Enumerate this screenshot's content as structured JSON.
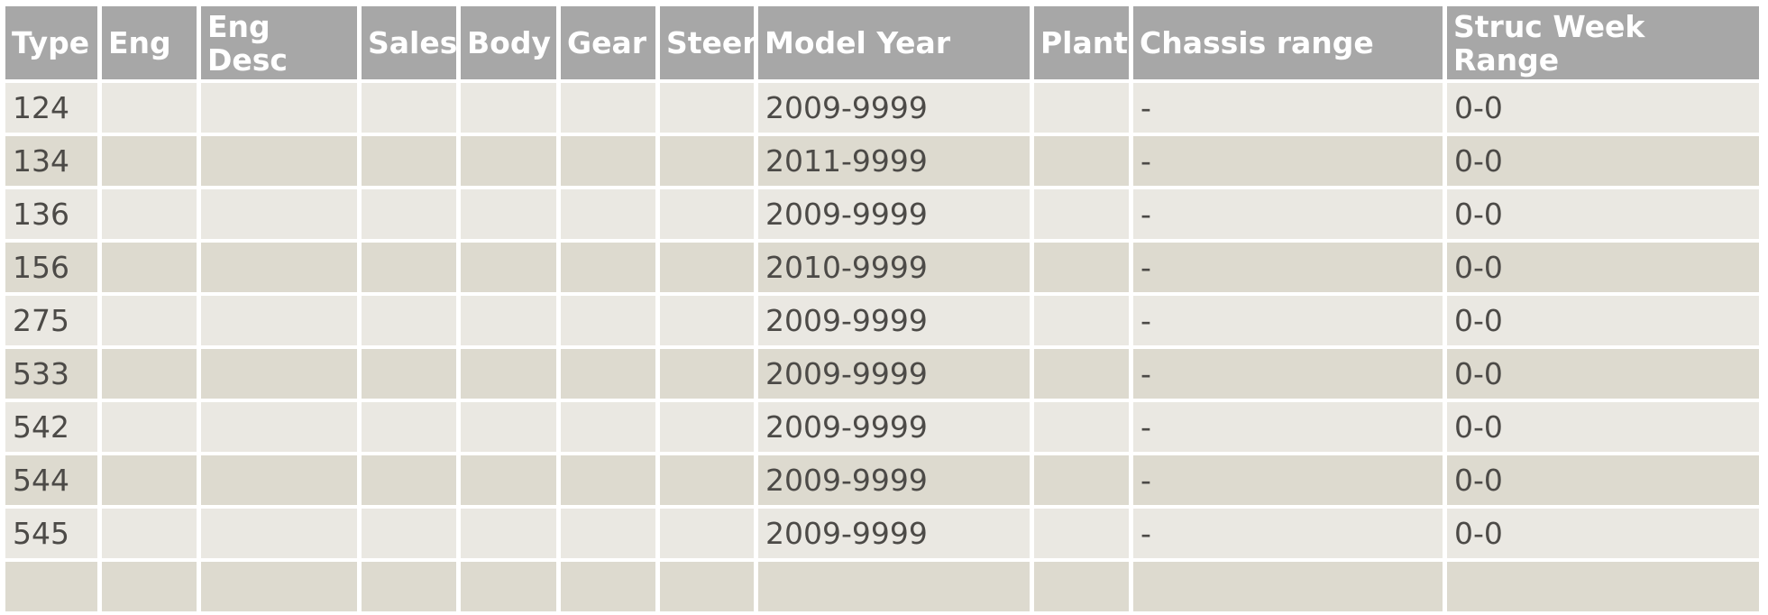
{
  "colors": {
    "header_bg": "#a7a7a7",
    "header_text": "#ffffff",
    "row_light": "#eae8e2",
    "row_dark": "#dddacf",
    "cell_text": "#4c4a47",
    "grid_gap": "#ffffff"
  },
  "table": {
    "columns": [
      {
        "key": "type",
        "label": "Type"
      },
      {
        "key": "eng",
        "label": "Eng"
      },
      {
        "key": "eng_desc",
        "label": "Eng Desc"
      },
      {
        "key": "sales",
        "label": "Sales"
      },
      {
        "key": "body",
        "label": "Body"
      },
      {
        "key": "gear",
        "label": "Gear"
      },
      {
        "key": "steer",
        "label": "Steer"
      },
      {
        "key": "model_year",
        "label": "Model Year"
      },
      {
        "key": "plant",
        "label": "Plant"
      },
      {
        "key": "chassis_range",
        "label": "Chassis range"
      },
      {
        "key": "struc_week_range",
        "label": "Struc Week Range"
      }
    ],
    "rows": [
      {
        "type": "124",
        "eng": "",
        "eng_desc": "",
        "sales": "",
        "body": "",
        "gear": "",
        "steer": "",
        "model_year": "2009-9999",
        "plant": "",
        "chassis_range": "-",
        "struc_week_range": "0-0"
      },
      {
        "type": "134",
        "eng": "",
        "eng_desc": "",
        "sales": "",
        "body": "",
        "gear": "",
        "steer": "",
        "model_year": "2011-9999",
        "plant": "",
        "chassis_range": "-",
        "struc_week_range": "0-0"
      },
      {
        "type": "136",
        "eng": "",
        "eng_desc": "",
        "sales": "",
        "body": "",
        "gear": "",
        "steer": "",
        "model_year": "2009-9999",
        "plant": "",
        "chassis_range": "-",
        "struc_week_range": "0-0"
      },
      {
        "type": "156",
        "eng": "",
        "eng_desc": "",
        "sales": "",
        "body": "",
        "gear": "",
        "steer": "",
        "model_year": "2010-9999",
        "plant": "",
        "chassis_range": "-",
        "struc_week_range": "0-0"
      },
      {
        "type": "275",
        "eng": "",
        "eng_desc": "",
        "sales": "",
        "body": "",
        "gear": "",
        "steer": "",
        "model_year": "2009-9999",
        "plant": "",
        "chassis_range": "-",
        "struc_week_range": "0-0"
      },
      {
        "type": "533",
        "eng": "",
        "eng_desc": "",
        "sales": "",
        "body": "",
        "gear": "",
        "steer": "",
        "model_year": "2009-9999",
        "plant": "",
        "chassis_range": "-",
        "struc_week_range": "0-0"
      },
      {
        "type": "542",
        "eng": "",
        "eng_desc": "",
        "sales": "",
        "body": "",
        "gear": "",
        "steer": "",
        "model_year": "2009-9999",
        "plant": "",
        "chassis_range": "-",
        "struc_week_range": "0-0"
      },
      {
        "type": "544",
        "eng": "",
        "eng_desc": "",
        "sales": "",
        "body": "",
        "gear": "",
        "steer": "",
        "model_year": "2009-9999",
        "plant": "",
        "chassis_range": "-",
        "struc_week_range": "0-0"
      },
      {
        "type": "545",
        "eng": "",
        "eng_desc": "",
        "sales": "",
        "body": "",
        "gear": "",
        "steer": "",
        "model_year": "2009-9999",
        "plant": "",
        "chassis_range": "-",
        "struc_week_range": "0-0"
      }
    ],
    "truncated_next_row": true
  }
}
